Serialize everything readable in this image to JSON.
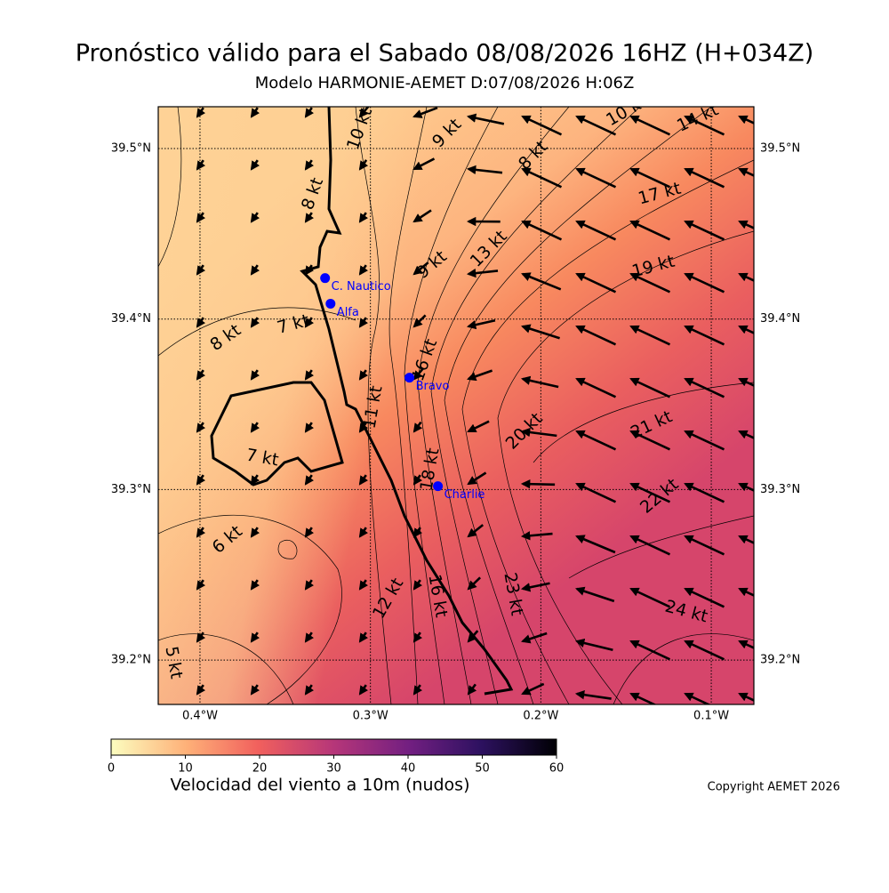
{
  "title": "Pronóstico válido para el Sabado 08/08/2026 16HZ (H+034Z)",
  "subtitle": "Modelo HARMONIE-AEMET D:07/08/2026 H:06Z",
  "map": {
    "xlim": [
      -0.4245,
      -0.075
    ],
    "ylim": [
      39.174,
      39.5245
    ],
    "xticks": [
      {
        "value": -0.4,
        "label": "0.4°W"
      },
      {
        "value": -0.3,
        "label": "0.3°W"
      },
      {
        "value": -0.2,
        "label": "0.2°W"
      },
      {
        "value": -0.1,
        "label": "0.1°W"
      }
    ],
    "yticks": [
      {
        "value": 39.2,
        "label": "39.2°N"
      },
      {
        "value": 39.3,
        "label": "39.3°N"
      },
      {
        "value": 39.4,
        "label": "39.4°N"
      },
      {
        "value": 39.5,
        "label": "39.5°N"
      }
    ],
    "grid": true,
    "stations": [
      {
        "name": "C. Nautico",
        "lon": -0.3266,
        "lat": 39.424,
        "color": "#0000ff"
      },
      {
        "name": "Alfa",
        "lon": -0.3234,
        "lat": 39.409,
        "color": "#0000ff"
      },
      {
        "name": "Bravo",
        "lon": -0.2771,
        "lat": 39.3656,
        "color": "#0000ff"
      },
      {
        "name": "Charlie",
        "lon": -0.2604,
        "lat": 39.302,
        "color": "#0000ff"
      }
    ],
    "contour_labels": [
      "10 kt",
      "9 kt",
      "8 kt",
      "10 kt",
      "14 kt",
      "8 kt",
      "17 kt",
      "9 kt",
      "13 kt",
      "19 kt",
      "8 kt",
      "7 kt",
      "16 kt",
      "11 kt",
      "20 kt",
      "21 kt",
      "7 kt",
      "18 kt",
      "22 kt",
      "6 kt",
      "12 kt",
      "16 kt",
      "23 kt",
      "24 kt",
      "5 kt"
    ]
  },
  "colorbar": {
    "label": "Velocidad del viento a 10m (nudos)",
    "lim": [
      0,
      60
    ],
    "ticks": [
      0,
      10,
      20,
      30,
      40,
      50,
      60
    ]
  },
  "copyright": "Copyright AEMET 2026"
}
